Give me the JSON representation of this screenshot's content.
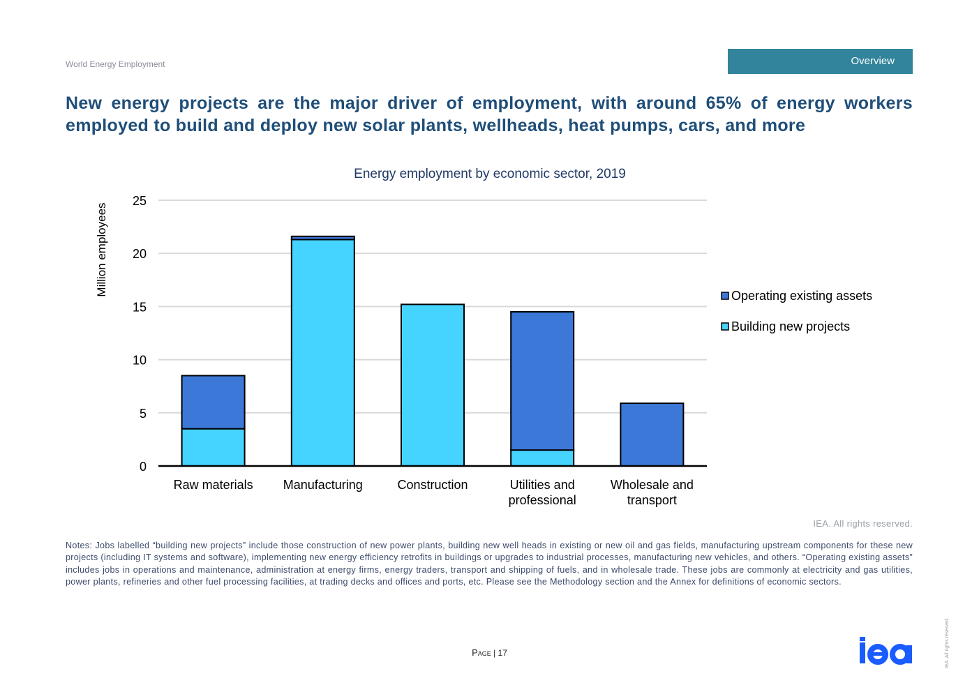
{
  "header": {
    "doc_label": "World Energy Employment",
    "section_tab": "Overview"
  },
  "headline": [
    "New energy projects are the major driver of employment, with around 65% of energy workers",
    "employed to build and deploy new solar plants, wellheads, heat pumps, cars, and more"
  ],
  "chart_data": {
    "type": "bar",
    "stacked": true,
    "title": "Energy employment by economic sector, 2019",
    "xlabel": "",
    "ylabel": "Million employees",
    "ylim": [
      0,
      25
    ],
    "yticks": [
      "0",
      "5",
      "10",
      "15",
      "20",
      "25"
    ],
    "grid": true,
    "legend_position": "right",
    "categories": [
      [
        "Raw materials"
      ],
      [
        "Manufacturing"
      ],
      [
        "Construction"
      ],
      [
        "Utilities and",
        "professional"
      ],
      [
        "Wholesale and",
        "transport"
      ]
    ],
    "series": [
      {
        "name": "Building new projects",
        "color": "#45d4ff",
        "values": [
          3.5,
          21.3,
          15.2,
          1.5,
          0
        ]
      },
      {
        "name": "Operating existing assets",
        "color": "#3c78d8",
        "values": [
          5.0,
          0.3,
          0,
          13.0,
          5.9
        ]
      }
    ],
    "legend": [
      "Operating existing assets",
      "Building new projects"
    ]
  },
  "rights": "IEA. All rights reserved.",
  "notes": "Notes: Jobs labelled “building new projects” include those construction of new power plants, building new well heads in existing or new oil and gas fields, manufacturing upstream components for these new projects (including IT systems and software), implementing new energy efficiency retrofits in buildings or upgrades to industrial processes, manufacturing new vehicles, and others. “Operating existing assets” includes jobs in operations and maintenance, administration at energy firms, energy traders, transport and shipping of fuels, and in wholesale trade. These jobs are commonly at electricity and gas utilities, power plants, refineries and other fuel processing facilities, at trading decks and offices and ports, etc. Please see the Methodology section and the Annex for definitions of economic sectors.",
  "footer": {
    "page_label": "Page",
    "page_number": "| 17",
    "logo": "iea",
    "vertical_rights": "IEA. All rights reserved."
  }
}
